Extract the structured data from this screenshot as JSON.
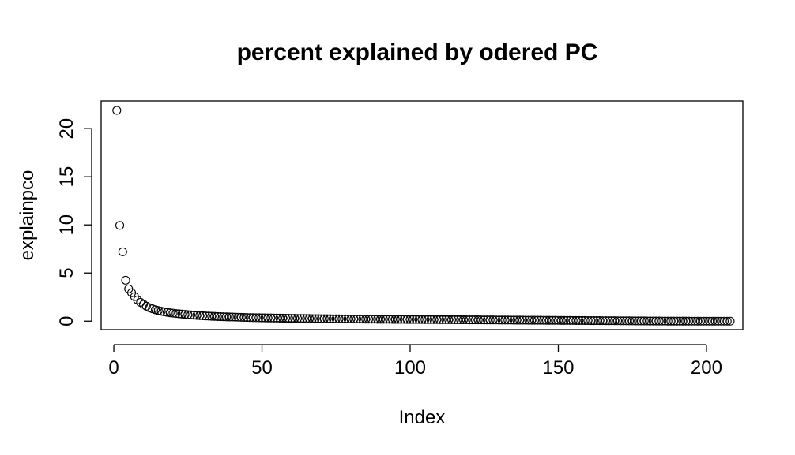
{
  "chart_data": {
    "type": "scatter",
    "title": "percent explained by odered PC",
    "xlabel": "Index",
    "ylabel": "explainpco",
    "xlim": [
      -4.28,
      212.28
    ],
    "ylim": [
      -0.88,
      22.88
    ],
    "xticks": [
      0,
      50,
      100,
      150,
      200
    ],
    "yticks": [
      0,
      5,
      10,
      15,
      20
    ],
    "grid": false,
    "legend": "none",
    "marker": "open-circle",
    "x": [
      1,
      2,
      3,
      4,
      5,
      6,
      7,
      8,
      9,
      10,
      11,
      12,
      13,
      14,
      15,
      16,
      17,
      18,
      19,
      20,
      21,
      22,
      23,
      24,
      25,
      26,
      27,
      28,
      29,
      30,
      31,
      32,
      33,
      34,
      35,
      36,
      37,
      38,
      39,
      40,
      41,
      42,
      43,
      44,
      45,
      46,
      47,
      48,
      49,
      50,
      51,
      52,
      53,
      54,
      55,
      56,
      57,
      58,
      59,
      60,
      61,
      62,
      63,
      64,
      65,
      66,
      67,
      68,
      69,
      70,
      71,
      72,
      73,
      74,
      75,
      76,
      77,
      78,
      79,
      80,
      81,
      82,
      83,
      84,
      85,
      86,
      87,
      88,
      89,
      90,
      91,
      92,
      93,
      94,
      95,
      96,
      97,
      98,
      99,
      100,
      101,
      102,
      103,
      104,
      105,
      106,
      107,
      108,
      109,
      110,
      111,
      112,
      113,
      114,
      115,
      116,
      117,
      118,
      119,
      120,
      121,
      122,
      123,
      124,
      125,
      126,
      127,
      128,
      129,
      130,
      131,
      132,
      133,
      134,
      135,
      136,
      137,
      138,
      139,
      140,
      141,
      142,
      143,
      144,
      145,
      146,
      147,
      148,
      149,
      150,
      151,
      152,
      153,
      154,
      155,
      156,
      157,
      158,
      159,
      160,
      161,
      162,
      163,
      164,
      165,
      166,
      167,
      168,
      169,
      170,
      171,
      172,
      173,
      174,
      175,
      176,
      177,
      178,
      179,
      180,
      181,
      182,
      183,
      184,
      185,
      186,
      187,
      188,
      189,
      190,
      191,
      192,
      193,
      194,
      195,
      196,
      197,
      198,
      199,
      200,
      201,
      202,
      203,
      204,
      205,
      206,
      207,
      208
    ],
    "y": [
      21.9,
      9.95,
      7.2,
      4.25,
      3.35,
      2.95,
      2.55,
      2.2,
      1.95,
      1.75,
      1.55,
      1.4,
      1.28,
      1.18,
      1.1,
      1.03,
      0.97,
      0.92,
      0.87,
      0.83,
      0.79,
      0.76,
      0.73,
      0.7,
      0.67,
      0.65,
      0.62,
      0.6,
      0.58,
      0.56,
      0.54,
      0.53,
      0.51,
      0.5,
      0.48,
      0.47,
      0.46,
      0.45,
      0.44,
      0.43,
      0.42,
      0.41,
      0.4,
      0.39,
      0.38,
      0.37,
      0.365,
      0.36,
      0.35,
      0.345,
      0.34,
      0.335,
      0.33,
      0.325,
      0.32,
      0.315,
      0.31,
      0.305,
      0.3,
      0.296,
      0.292,
      0.288,
      0.284,
      0.28,
      0.276,
      0.272,
      0.268,
      0.264,
      0.26,
      0.257,
      0.254,
      0.251,
      0.248,
      0.245,
      0.242,
      0.239,
      0.236,
      0.233,
      0.23,
      0.227,
      0.224,
      0.221,
      0.218,
      0.215,
      0.212,
      0.21,
      0.208,
      0.206,
      0.204,
      0.202,
      0.2,
      0.198,
      0.196,
      0.194,
      0.192,
      0.19,
      0.188,
      0.186,
      0.184,
      0.182,
      0.18,
      0.178,
      0.176,
      0.174,
      0.172,
      0.17,
      0.168,
      0.166,
      0.164,
      0.162,
      0.16,
      0.158,
      0.156,
      0.154,
      0.152,
      0.15,
      0.148,
      0.146,
      0.144,
      0.142,
      0.14,
      0.138,
      0.136,
      0.134,
      0.132,
      0.13,
      0.128,
      0.126,
      0.124,
      0.122,
      0.12,
      0.118,
      0.116,
      0.114,
      0.112,
      0.11,
      0.108,
      0.106,
      0.104,
      0.102,
      0.1,
      0.098,
      0.096,
      0.094,
      0.092,
      0.09,
      0.088,
      0.086,
      0.084,
      0.082,
      0.08,
      0.078,
      0.076,
      0.074,
      0.072,
      0.07,
      0.068,
      0.066,
      0.064,
      0.062,
      0.06,
      0.058,
      0.056,
      0.054,
      0.052,
      0.05,
      0.048,
      0.046,
      0.044,
      0.042,
      0.04,
      0.038,
      0.036,
      0.034,
      0.032,
      0.03,
      0.028,
      0.026,
      0.024,
      0.022,
      0.02,
      0.018,
      0.016,
      0.014,
      0.012,
      0.01,
      0.009,
      0.008,
      0.007,
      0.006,
      0.005,
      0.004,
      0.003,
      0.002,
      0.001,
      0.0,
      0.0,
      0.0,
      0.0,
      0.0,
      0.0,
      0.0,
      0.0,
      0.0,
      0.0,
      0.0,
      0.0,
      0.0
    ]
  }
}
